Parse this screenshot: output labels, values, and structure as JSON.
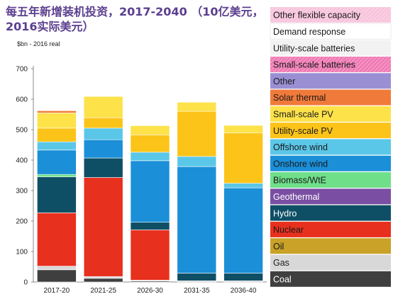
{
  "chart_data": {
    "type": "bar",
    "stacked": true,
    "title_lines": [
      "每五年新增装机投资，2017-2040 （10亿美元，",
      "2016实际美元）"
    ],
    "unit_label": "$bn - 2016 real",
    "categories": [
      "2017-20",
      "2021-25",
      "2026-30",
      "2031-35",
      "2036-40"
    ],
    "ylim": [
      0,
      700
    ],
    "yticks": [
      0,
      100,
      200,
      300,
      400,
      500,
      600,
      700
    ],
    "grid": false,
    "legend_placement": "right",
    "series": [
      {
        "name": "Coal",
        "color": "#3f3f3f",
        "values": [
          40,
          12,
          3,
          2,
          2
        ]
      },
      {
        "name": "Gas",
        "color": "#d8d8d8",
        "values": [
          12,
          6,
          3,
          2,
          2
        ]
      },
      {
        "name": "Oil",
        "color": "#c9a227",
        "values": [
          0,
          0,
          0,
          0,
          0
        ]
      },
      {
        "name": "Nuclear",
        "color": "#e8301e",
        "values": [
          175,
          325,
          165,
          0,
          0
        ]
      },
      {
        "name": "Hydro",
        "color": "#0e4f66",
        "values": [
          118,
          64,
          25,
          25,
          25
        ]
      },
      {
        "name": "Geothermal",
        "color": "#7a4fa3",
        "values": [
          0,
          0,
          0,
          0,
          0
        ]
      },
      {
        "name": "Biomass/WtE",
        "color": "#6fdf8a",
        "values": [
          8,
          0,
          0,
          0,
          0
        ]
      },
      {
        "name": "Onshore wind",
        "color": "#1b8fd8",
        "values": [
          80,
          60,
          202,
          350,
          280
        ]
      },
      {
        "name": "Offshore wind",
        "color": "#5bc7e8",
        "values": [
          27,
          38,
          28,
          33,
          15
        ]
      },
      {
        "name": "Utility-scale PV",
        "color": "#fcc419",
        "values": [
          45,
          34,
          57,
          148,
          165
        ]
      },
      {
        "name": "Small-scale PV",
        "color": "#fde24a",
        "values": [
          50,
          70,
          30,
          30,
          25
        ]
      },
      {
        "name": "Solar thermal",
        "color": "#f07a3a",
        "values": [
          7,
          0,
          0,
          0,
          0
        ]
      },
      {
        "name": "Other",
        "color": "#9b8fd4",
        "values": [
          0,
          0,
          0,
          0,
          0
        ]
      },
      {
        "name": "Small-scale batteries",
        "color": "#e85aa0",
        "values": [
          0,
          0,
          0,
          0,
          0
        ]
      },
      {
        "name": "Utility-scale batteries",
        "color": "#f2f2f2",
        "values": [
          0,
          0,
          0,
          0,
          0
        ]
      },
      {
        "name": "Demand response",
        "color": "#ffffff",
        "values": [
          0,
          0,
          0,
          0,
          0
        ]
      },
      {
        "name": "Other flexible capacity",
        "color": "#f8c4dc",
        "values": [
          0,
          0,
          0,
          0,
          0
        ]
      }
    ],
    "legend": [
      {
        "label": "Other flexible capacity",
        "color": "#f8c4dc",
        "text_color": "#1a1a1a",
        "pattern": "hatch"
      },
      {
        "label": "Demand response",
        "color": "#ffffff",
        "text_color": "#1a1a1a",
        "pattern": "none"
      },
      {
        "label": "Utility-scale batteries",
        "color": "#f2f2f2",
        "text_color": "#1a1a1a",
        "pattern": "none"
      },
      {
        "label": "Small-scale batteries",
        "color": "#f07ab4",
        "text_color": "#1a1a1a",
        "pattern": "hatch"
      },
      {
        "label": "Other",
        "color": "#9b8fd4",
        "text_color": "#1a1a1a",
        "pattern": "none"
      },
      {
        "label": "Solar thermal",
        "color": "#f07a3a",
        "text_color": "#1a1a1a",
        "pattern": "none"
      },
      {
        "label": "Small-scale PV",
        "color": "#fde24a",
        "text_color": "#1a1a1a",
        "pattern": "none"
      },
      {
        "label": "Utility-scale PV",
        "color": "#fcc419",
        "text_color": "#1a1a1a",
        "pattern": "none"
      },
      {
        "label": "Offshore wind",
        "color": "#5bc7e8",
        "text_color": "#1a1a1a",
        "pattern": "none"
      },
      {
        "label": "Onshore wind",
        "color": "#1b8fd8",
        "text_color": "#1a1a1a",
        "pattern": "none"
      },
      {
        "label": "Biomass/WtE",
        "color": "#6fdf8a",
        "text_color": "#1a1a1a",
        "pattern": "none"
      },
      {
        "label": "Geothermal",
        "color": "#7a4fa3",
        "text_color": "#ffffff",
        "pattern": "none"
      },
      {
        "label": "Hydro",
        "color": "#0e4f66",
        "text_color": "#ffffff",
        "pattern": "none"
      },
      {
        "label": "Nuclear",
        "color": "#e8301e",
        "text_color": "#1a1a1a",
        "pattern": "none"
      },
      {
        "label": "Oil",
        "color": "#c9a227",
        "text_color": "#1a1a1a",
        "pattern": "none"
      },
      {
        "label": "Gas",
        "color": "#d8d8d8",
        "text_color": "#1a1a1a",
        "pattern": "none"
      },
      {
        "label": "Coal",
        "color": "#3f3f3f",
        "text_color": "#ffffff",
        "pattern": "none"
      }
    ]
  }
}
